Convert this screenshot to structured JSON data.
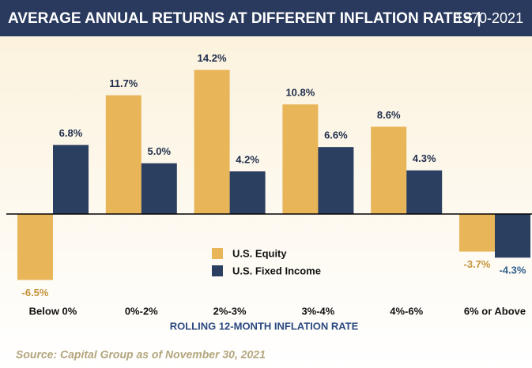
{
  "chart_data": {
    "type": "bar",
    "title": "AVERAGE ANNUAL RETURNS AT DIFFERENT INFLATION RATES |",
    "subtitle": "1970-2021",
    "x_label": "ROLLING 12-MONTH INFLATION RATE",
    "source": "Source: Capital Group as of November 30, 2021",
    "categories": [
      "Below 0%",
      "0%-2%",
      "2%-3%",
      "3%-4%",
      "4%-6%",
      "6% or Above"
    ],
    "series": [
      {
        "name": "U.S. Equity",
        "color": "#e8b558",
        "label_color_negative": "#c4923a",
        "values": [
          -6.5,
          11.7,
          14.2,
          10.8,
          8.6,
          -3.7
        ],
        "value_labels": [
          "-6.5%",
          "11.7%",
          "14.2%",
          "10.8%",
          "8.6%",
          "-3.7%"
        ]
      },
      {
        "name": "U.S. Fixed Income",
        "color": "#2b3f60",
        "label_color_negative": "#2f5f8f",
        "values": [
          6.8,
          5.0,
          4.2,
          6.6,
          4.3,
          -4.3
        ],
        "value_labels": [
          "6.8%",
          "5.0%",
          "4.2%",
          "6.6%",
          "4.3%",
          "-4.3%"
        ]
      }
    ]
  }
}
